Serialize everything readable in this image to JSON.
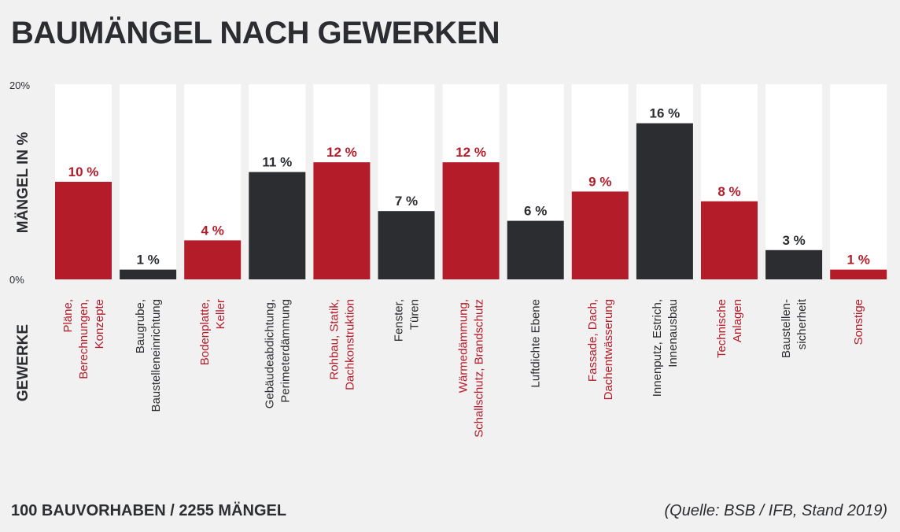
{
  "chart_data": {
    "type": "bar",
    "title": "BAUMÄNGEL NACH GEWERKEN",
    "ylabel": "MÄNGEL IN %",
    "xlabel": "GEWERKE",
    "ylim": [
      0,
      20
    ],
    "yticks": [
      "0%",
      "20%"
    ],
    "grid": false,
    "categories": [
      [
        "Pläne,",
        "Berechnungen,",
        "Konzepte"
      ],
      [
        "Baugrube,",
        "Baustelleneinrichtung"
      ],
      [
        "Bodenplatte,",
        "Keller"
      ],
      [
        "Gebäudeabdichtung,",
        "Perimeterdämmung"
      ],
      [
        "Rohbau, Statik,",
        "Dachkonstruktion"
      ],
      [
        "Fenster,",
        "Türen"
      ],
      [
        "Wärmedämmung,",
        "Schallschutz, Brandschutz"
      ],
      [
        "Luftdichte Ebene"
      ],
      [
        "Fassade, Dach,",
        "Dachentwässerung"
      ],
      [
        "Innenputz, Estrich,",
        "Innenausbau"
      ],
      [
        "Technische",
        "Anlagen"
      ],
      [
        "Baustellen-",
        "sicherheit"
      ],
      [
        "Sonstige"
      ]
    ],
    "values": [
      10,
      1,
      4,
      11,
      12,
      7,
      12,
      6,
      9,
      16,
      8,
      3,
      1
    ],
    "value_labels": [
      "10 %",
      "1 %",
      "4 %",
      "11 %",
      "12 %",
      "7 %",
      "12 %",
      "6 %",
      "9 %",
      "16 %",
      "8 %",
      "3 %",
      "1 %"
    ],
    "highlight": [
      true,
      false,
      true,
      false,
      true,
      false,
      true,
      false,
      true,
      false,
      true,
      false,
      true
    ],
    "colors": {
      "highlight": "#b51c2a",
      "normal": "#2b2d30",
      "track": "#ffffff",
      "background": "#f1f1f1"
    }
  },
  "footer": {
    "left": "100 BAUVORHABEN / 2255 MÄNGEL",
    "right": "(Quelle: BSB / IFB, Stand 2019)"
  }
}
